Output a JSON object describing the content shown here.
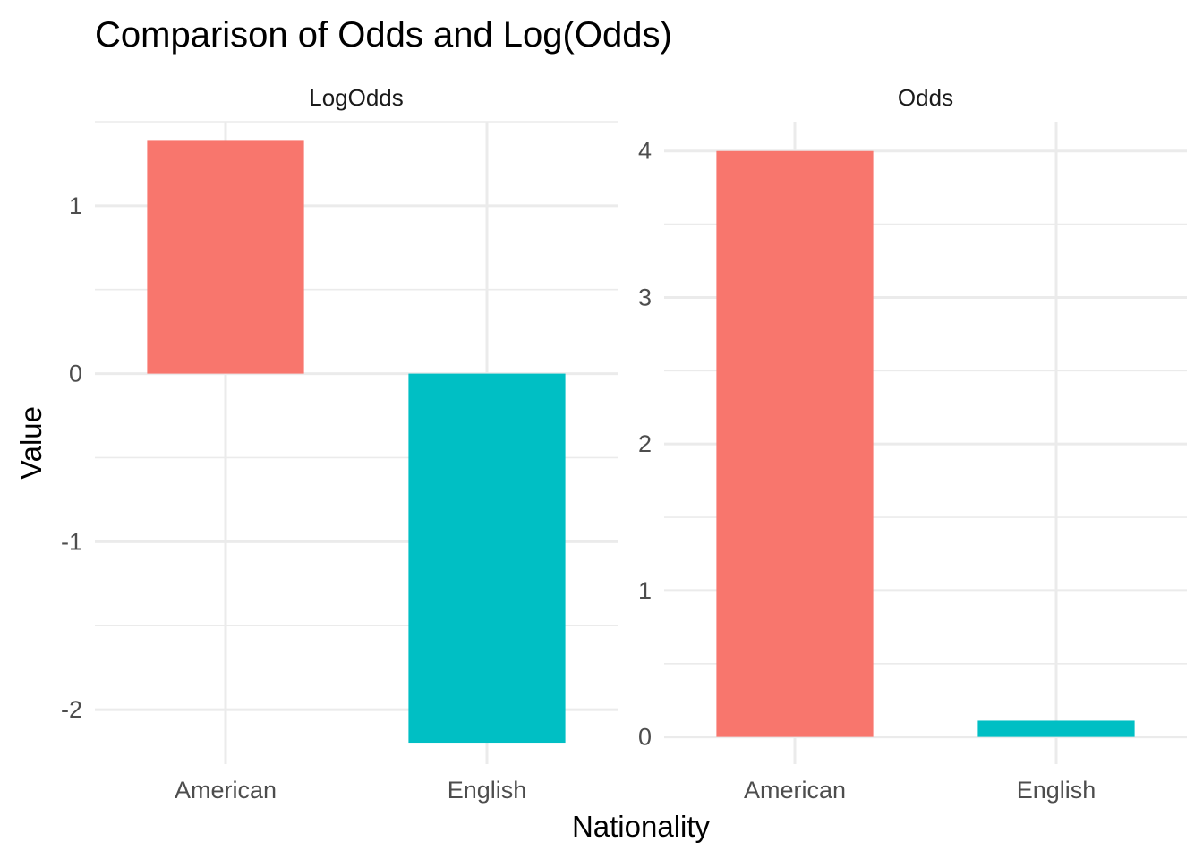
{
  "chart_data": {
    "type": "bar",
    "title": "Comparison of Odds and Log(Odds)",
    "xlabel": "Nationality",
    "ylabel": "Value",
    "facet_scales": "free_y",
    "grid": true,
    "legend": "none",
    "categories": [
      "American",
      "English"
    ],
    "colors": {
      "American": "#F8766D",
      "English": "#00BFC4"
    },
    "facets": [
      {
        "name": "LogOdds",
        "values": [
          1.386,
          -2.197
        ],
        "ylim": [
          -2.25,
          1.5
        ],
        "yticks": [
          -2,
          -1,
          0,
          1
        ],
        "ytick_labels": [
          "-2",
          "-1",
          "0",
          "1"
        ]
      },
      {
        "name": "Odds",
        "values": [
          4.0,
          0.111
        ],
        "ylim": [
          -0.1,
          4.2
        ],
        "yticks": [
          0,
          1,
          2,
          3,
          4
        ],
        "ytick_labels": [
          "0",
          "1",
          "2",
          "3",
          "4"
        ]
      }
    ]
  }
}
